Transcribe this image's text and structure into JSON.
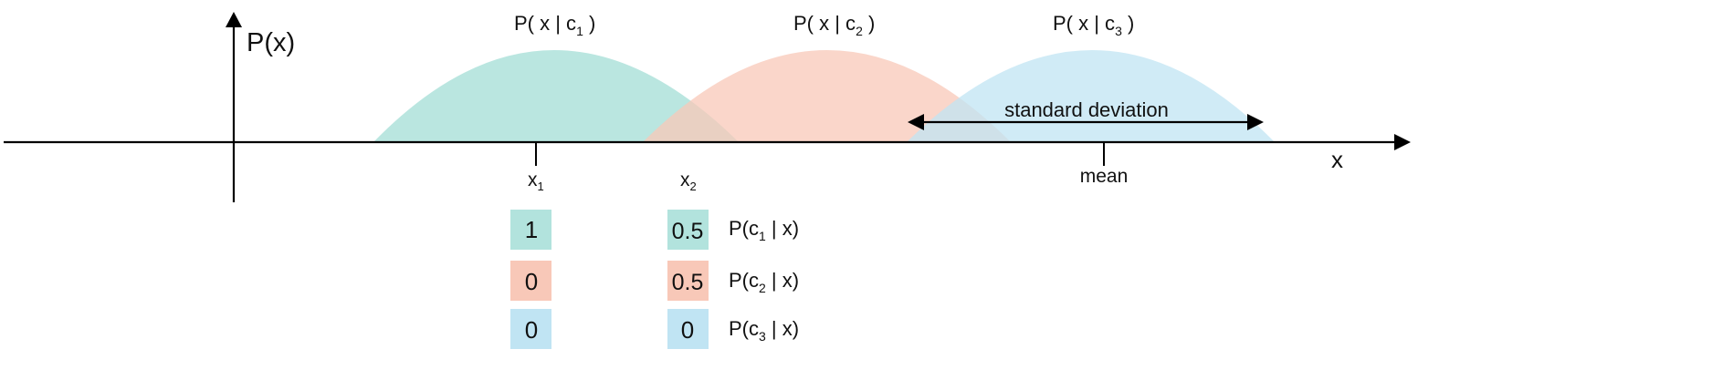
{
  "axes": {
    "y_label": "P(x)",
    "x_label": "x"
  },
  "curves": [
    {
      "label_prefix": "P( x | c",
      "label_sub": "1",
      "label_suffix": " )",
      "color": "#b2e3dd"
    },
    {
      "label_prefix": "P( x | c",
      "label_sub": "2",
      "label_suffix": " )",
      "color": "#f8c8b8"
    },
    {
      "label_prefix": "P( x | c",
      "label_sub": "3",
      "label_suffix": " )",
      "color": "#c0e4f3"
    }
  ],
  "annotations": {
    "std_label": "standard deviation",
    "mean_label": "mean",
    "x1_main": "x",
    "x1_sub": "1",
    "x2_main": "x",
    "x2_sub": "2"
  },
  "posteriors": {
    "row_labels": [
      {
        "prefix": "P(c",
        "sub": "1",
        "suffix": " | x)"
      },
      {
        "prefix": "P(c",
        "sub": "2",
        "suffix": " | x)"
      },
      {
        "prefix": "P(c",
        "sub": "3",
        "suffix": " | x)"
      }
    ],
    "x1_values": [
      "1",
      "0",
      "0"
    ],
    "x2_values": [
      "0.5",
      "0.5",
      "0"
    ]
  }
}
